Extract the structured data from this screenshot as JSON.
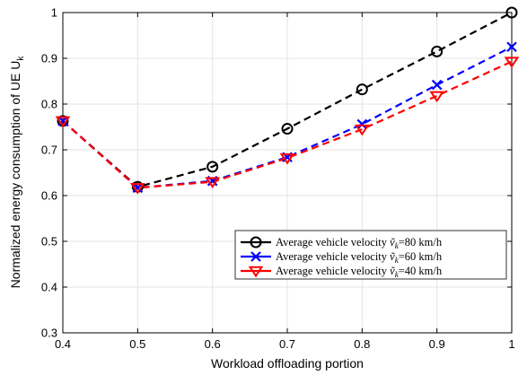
{
  "chart_data": {
    "type": "line",
    "xlabel": "Workload offloading portion",
    "ylabel": "Normalized energy consumption of UE U",
    "ylabel_sub": "k",
    "xlim": [
      0.4,
      1.0
    ],
    "ylim": [
      0.3,
      1.0
    ],
    "xticks": [
      "0.4",
      "0.5",
      "0.6",
      "0.7",
      "0.8",
      "0.9",
      "1"
    ],
    "yticks": [
      "0.3",
      "0.4",
      "0.5",
      "0.6",
      "0.7",
      "0.8",
      "0.9",
      "1"
    ],
    "grid": true,
    "legend_position": "lower-right",
    "x": [
      0.4,
      0.5,
      0.6,
      0.7,
      0.8,
      0.9,
      1.0
    ],
    "series": [
      {
        "name": "Average vehicle velocity ṽₖ=80 km/h",
        "legend_prefix": "Average vehicle velocity ",
        "legend_var": "ṽ",
        "legend_sub": "k",
        "legend_suffix": "=80 km/h",
        "color": "#000000",
        "marker": "circle",
        "values": [
          0.763,
          0.619,
          0.663,
          0.746,
          0.832,
          0.915,
          1.0
        ]
      },
      {
        "name": "Average vehicle velocity ṽₖ=60 km/h",
        "legend_prefix": "Average vehicle velocity ",
        "legend_var": "ṽ",
        "legend_sub": "k",
        "legend_suffix": "=60 km/h",
        "color": "#0000ff",
        "marker": "x",
        "values": [
          0.763,
          0.617,
          0.632,
          0.684,
          0.756,
          0.842,
          0.925
        ]
      },
      {
        "name": "Average vehicle velocity ṽₖ=40 km/h",
        "legend_prefix": "Average vehicle velocity ",
        "legend_var": "ṽ",
        "legend_sub": "k",
        "legend_suffix": "=40 km/h",
        "color": "#ff0000",
        "marker": "triangle-down",
        "values": [
          0.763,
          0.617,
          0.63,
          0.682,
          0.745,
          0.818,
          0.893
        ]
      }
    ]
  }
}
